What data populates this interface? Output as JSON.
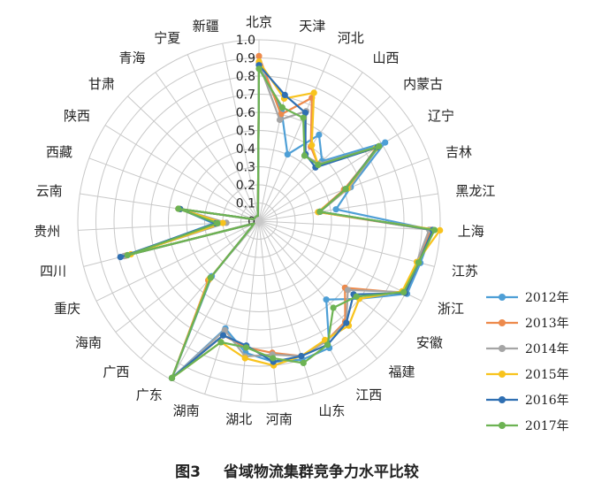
{
  "chart_data": {
    "type": "radar",
    "categories": [
      "北京",
      "天津",
      "河北",
      "山西",
      "内蒙古",
      "辽宁",
      "吉林",
      "黑龙江",
      "上海",
      "江苏",
      "浙江",
      "安徽",
      "福建",
      "江西",
      "山东",
      "河南",
      "湖北",
      "湖南",
      "广东",
      "广西",
      "海南",
      "重庆",
      "四川",
      "贵州",
      "云南",
      "西藏",
      "陕西",
      "甘肃",
      "青海",
      "宁夏",
      "新疆"
    ],
    "rticks": [
      "0",
      "0.1",
      "0.2",
      "0.3",
      "0.4",
      "0.5",
      "0.6",
      "0.7",
      "0.8",
      "0.9",
      "1.0"
    ],
    "rlim": [
      0,
      1
    ],
    "series": [
      {
        "name": "2012年",
        "color": "#4e9fd6",
        "values": [
          0.86,
          0.62,
          0.4,
          0.58,
          0.48,
          0.82,
          0.54,
          0.43,
          0.96,
          0.92,
          0.91,
          0.7,
          0.57,
          0.8,
          0.8,
          0.78,
          0.73,
          0.62,
          0.99,
          0.4,
          0.05,
          0.03,
          0.75,
          0.25,
          0.44,
          0.03,
          0.03,
          0.03,
          0.03,
          0.03,
          0.03
        ]
      },
      {
        "name": "2013年",
        "color": "#ed8a4c",
        "values": [
          0.91,
          0.6,
          0.74,
          0.5,
          0.45,
          0.78,
          0.5,
          0.33,
          0.95,
          0.91,
          0.9,
          0.6,
          0.73,
          0.76,
          0.78,
          0.73,
          0.7,
          0.66,
          0.99,
          0.43,
          0.05,
          0.03,
          0.76,
          0.23,
          0.45,
          0.03,
          0.03,
          0.03,
          0.03,
          0.03,
          0.03
        ]
      },
      {
        "name": "2014年",
        "color": "#a5a5a5",
        "values": [
          0.87,
          0.57,
          0.66,
          0.44,
          0.46,
          0.78,
          0.53,
          0.34,
          0.94,
          0.9,
          0.89,
          0.62,
          0.74,
          0.76,
          0.78,
          0.74,
          0.75,
          0.63,
          0.99,
          0.41,
          0.05,
          0.03,
          0.77,
          0.18,
          0.44,
          0.03,
          0.03,
          0.03,
          0.03,
          0.03,
          0.03
        ]
      },
      {
        "name": "2015年",
        "color": "#f8c31d",
        "values": [
          0.88,
          0.69,
          0.77,
          0.51,
          0.45,
          0.76,
          0.52,
          0.33,
          1.0,
          0.9,
          0.88,
          0.7,
          0.76,
          0.75,
          0.78,
          0.8,
          0.76,
          0.7,
          0.99,
          0.42,
          0.05,
          0.03,
          0.73,
          0.2,
          0.44,
          0.03,
          0.03,
          0.03,
          0.03,
          0.03,
          0.03
        ]
      },
      {
        "name": "2016年",
        "color": "#2f6fb2",
        "values": [
          0.86,
          0.71,
          0.65,
          0.45,
          0.43,
          0.77,
          0.51,
          0.34,
          0.96,
          0.91,
          0.9,
          0.66,
          0.74,
          0.78,
          0.78,
          0.78,
          0.69,
          0.66,
          0.99,
          0.41,
          0.05,
          0.03,
          0.79,
          0.24,
          0.44,
          0.03,
          0.03,
          0.03,
          0.03,
          0.03,
          0.03
        ]
      },
      {
        "name": "2017年",
        "color": "#6db353",
        "values": [
          0.84,
          0.64,
          0.62,
          0.44,
          0.45,
          0.78,
          0.51,
          0.34,
          0.97,
          0.91,
          0.89,
          0.68,
          0.63,
          0.78,
          0.82,
          0.76,
          0.7,
          0.7,
          0.99,
          0.41,
          0.05,
          0.03,
          0.75,
          0.23,
          0.45,
          0.03,
          0.03,
          0.03,
          0.03,
          0.03,
          0.03
        ]
      }
    ]
  },
  "caption": {
    "figure_no": "图3",
    "title": "省域物流集群竞争力水平比较"
  }
}
